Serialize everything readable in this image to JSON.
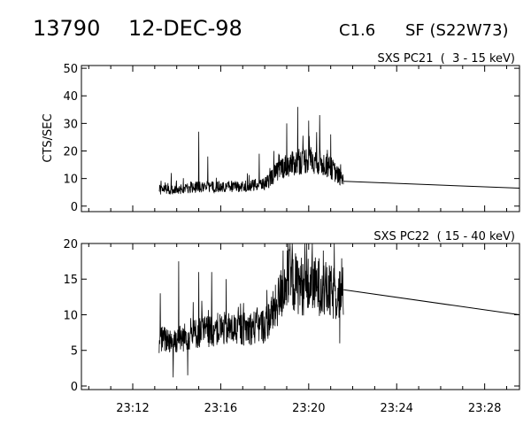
{
  "header": {
    "event_number": "13790",
    "date": "12-DEC-98",
    "goes_class": "C1.6",
    "location": "SF (S22W73)"
  },
  "colors": {
    "ink": "#000000",
    "background": "#ffffff"
  },
  "chart_data": [
    {
      "type": "line",
      "title": "SXS PC21  (  3 - 15 keV)",
      "ylabel": "CTS/SEC",
      "xlabel": "",
      "xlim": [
        "23:09:40",
        "23:29:35"
      ],
      "ylim": [
        -2,
        51
      ],
      "yticks": [
        0,
        10,
        20,
        30,
        40,
        50
      ],
      "xtick_labels_shown": false,
      "series": [
        {
          "style": "noisy count-rate trace",
          "x": [
            "23:13:12",
            "23:14:00",
            "23:15:00",
            "23:16:00",
            "23:17:00",
            "23:18:00",
            "23:18:45",
            "23:19:30",
            "23:20:00",
            "23:20:30",
            "23:21:00",
            "23:21:35"
          ],
          "values": [
            6,
            6,
            7,
            7,
            7,
            8,
            14,
            16,
            17,
            16,
            14,
            9
          ],
          "spikes": [
            {
              "x": "23:13:45",
              "value": 12
            },
            {
              "x": "23:15:00",
              "value": 27
            },
            {
              "x": "23:15:25",
              "value": 18
            },
            {
              "x": "23:17:45",
              "value": 19
            },
            {
              "x": "23:18:25",
              "value": 20
            },
            {
              "x": "23:19:00",
              "value": 30
            },
            {
              "x": "23:19:30",
              "value": 36
            },
            {
              "x": "23:20:00",
              "value": 31
            },
            {
              "x": "23:20:30",
              "value": 33
            },
            {
              "x": "23:21:00",
              "value": 26
            }
          ]
        },
        {
          "style": "straight interpolation segment",
          "x": [
            "23:21:35",
            "23:29:35"
          ],
          "values": [
            9,
            6.5
          ]
        }
      ]
    },
    {
      "type": "line",
      "title": "SXS PC22  ( 15 - 40 keV)",
      "ylabel": "",
      "xlabel": "",
      "xlim": [
        "23:09:40",
        "23:29:35"
      ],
      "ylim": [
        -0.5,
        20
      ],
      "yticks": [
        0,
        5,
        10,
        15,
        20
      ],
      "xtick_labels": [
        "23:12",
        "23:16",
        "23:20",
        "23:24",
        "23:28"
      ],
      "series": [
        {
          "style": "noisy count-rate trace",
          "x": [
            "23:13:12",
            "23:14:00",
            "23:15:00",
            "23:16:00",
            "23:17:00",
            "23:18:00",
            "23:18:30",
            "23:19:00",
            "23:19:45",
            "23:20:30",
            "23:21:00",
            "23:21:35"
          ],
          "values": [
            6.5,
            6.5,
            7.5,
            8,
            8,
            8.5,
            11,
            15,
            14,
            14,
            13,
            13
          ],
          "spikes": [
            {
              "x": "23:13:15",
              "value": 13
            },
            {
              "x": "23:14:05",
              "value": 17.5
            },
            {
              "x": "23:15:00",
              "value": 16
            },
            {
              "x": "23:15:35",
              "value": 16
            },
            {
              "x": "23:16:15",
              "value": 15
            },
            {
              "x": "23:18:50",
              "value": 19
            },
            {
              "x": "23:19:15",
              "value": 20
            },
            {
              "x": "23:20:10",
              "value": 20
            },
            {
              "x": "23:20:40",
              "value": 19
            }
          ],
          "dips": [
            {
              "x": "23:13:50",
              "value": 1.2
            },
            {
              "x": "23:14:30",
              "value": 1.5
            },
            {
              "x": "23:21:25",
              "value": 6
            }
          ]
        },
        {
          "style": "straight interpolation segment",
          "x": [
            "23:21:35",
            "23:29:35"
          ],
          "values": [
            13.5,
            10
          ]
        }
      ]
    }
  ]
}
